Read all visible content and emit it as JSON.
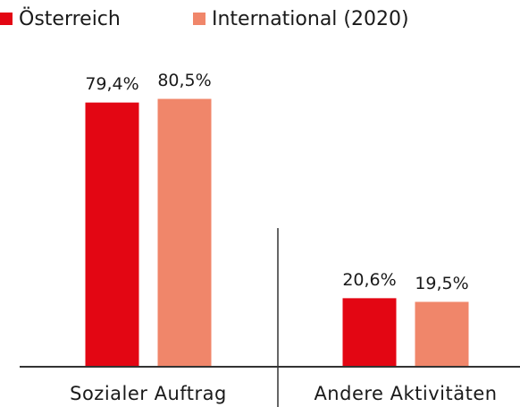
{
  "chart_data": {
    "type": "bar",
    "categories": [
      "Sozialer Auftrag",
      "Andere Aktivitäten"
    ],
    "series": [
      {
        "name": "Österreich",
        "color": "#e30613",
        "values": [
          79.4,
          20.6
        ],
        "value_labels": [
          "79,4%",
          "20,6%"
        ]
      },
      {
        "name": "International (2020)",
        "color": "#f0866a",
        "values": [
          80.5,
          19.5
        ],
        "value_labels": [
          "80,5%",
          "19,5%"
        ]
      }
    ],
    "ylim": [
      0,
      100
    ]
  }
}
